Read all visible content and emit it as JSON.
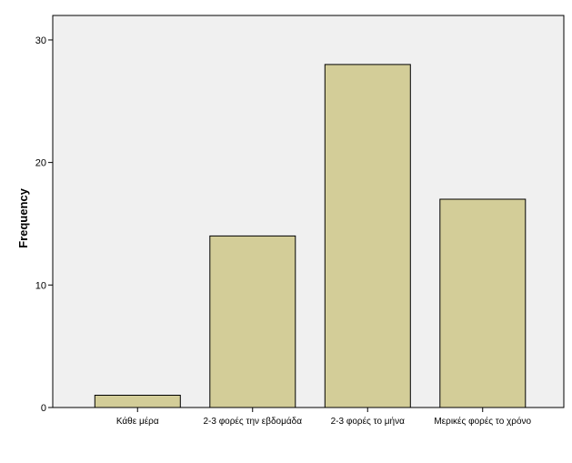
{
  "chart_data": {
    "type": "bar",
    "title": "",
    "xlabel": "",
    "ylabel": "Frequency",
    "categories": [
      "Κάθε μέρα",
      "2-3 φορές την εβδομάδα",
      "2-3 φορές το μήνα",
      "Μερικές φορές το χρόνο"
    ],
    "values": [
      1,
      14,
      28,
      17
    ],
    "ylim": [
      0,
      32
    ],
    "yticks": [
      0,
      10,
      20,
      30
    ],
    "grid": false,
    "legend": "none",
    "colors": {
      "bar_fill": "#d3cd98",
      "bar_stroke": "#000000",
      "plot_background": "#f0f0f0",
      "axis": "#000000"
    }
  }
}
